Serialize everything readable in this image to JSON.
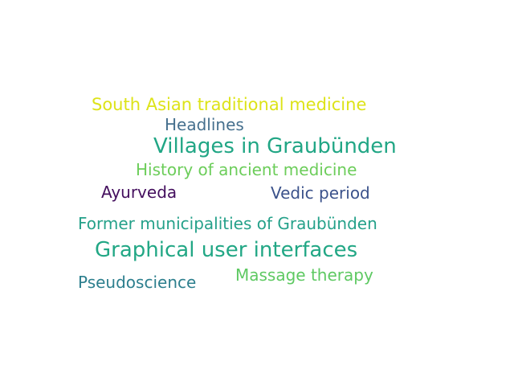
{
  "word_cloud": {
    "words": [
      {
        "text": "South Asian traditional medicine",
        "color": "#dde318"
      },
      {
        "text": "Headlines",
        "color": "#46708e"
      },
      {
        "text": "Villages in Graubünden",
        "color": "#21a685"
      },
      {
        "text": "History of ancient medicine",
        "color": "#6ccd5a"
      },
      {
        "text": "Ayurveda",
        "color": "#440f5e"
      },
      {
        "text": "Vedic period",
        "color": "#3b528b"
      },
      {
        "text": "Former municipalities of Graubünden",
        "color": "#25a18a"
      },
      {
        "text": "Graphical user interfaces",
        "color": "#22a785"
      },
      {
        "text": "Pseudoscience",
        "color": "#2d7f8e"
      },
      {
        "text": "Massage therapy",
        "color": "#5ec962"
      }
    ]
  }
}
